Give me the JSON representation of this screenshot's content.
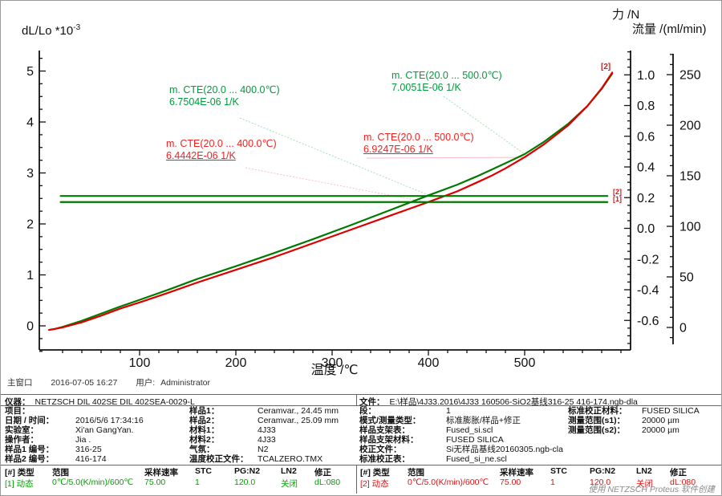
{
  "window": {
    "status": {
      "window_label": "主窗口",
      "datetime": "2016-07-05 16:27",
      "user_label": "用户:",
      "user": "Administrator"
    },
    "credit": "使用 NETZSCH Proteus 软件创建"
  },
  "chart_data": {
    "type": "line",
    "title": "",
    "axes": {
      "x": {
        "title": "温度 /℃",
        "range": [
          0,
          610
        ],
        "major_ticks": [
          100,
          200,
          300,
          400,
          500
        ],
        "minor_step": 20
      },
      "y_left": {
        "title_base": "dL/Lo *10",
        "title_exp": "-3",
        "range": [
          -0.55,
          5.4
        ],
        "major_ticks": [
          0,
          1,
          2,
          3,
          4,
          5
        ],
        "minor_step": 0.25
      },
      "y_force": {
        "title": "力 /N",
        "range": [
          -0.8,
          1.16
        ],
        "major_ticks": [
          1.0,
          0.8,
          0.6,
          0.4,
          0.2,
          0.0,
          -0.2,
          -0.4,
          -0.6
        ],
        "minor_step": 0.05
      },
      "y_flow": {
        "title": "流量 /(ml/min)",
        "range": [
          -17,
          270
        ],
        "major_ticks": [
          0,
          50,
          100,
          150,
          200,
          250
        ],
        "minor_step": 10
      }
    },
    "series": [
      {
        "name": "dL/Lo sample [1]",
        "color": "#007a00",
        "axis": "left",
        "x": [
          6,
          12,
          20,
          40,
          60,
          80,
          100,
          130,
          160,
          200,
          240,
          280,
          320,
          360,
          400,
          430,
          450,
          465,
          480,
          500,
          520,
          545,
          565,
          580,
          591
        ],
        "y": [
          -0.08,
          -0.06,
          -0.02,
          0.1,
          0.24,
          0.38,
          0.51,
          0.71,
          0.92,
          1.17,
          1.43,
          1.7,
          1.98,
          2.27,
          2.56,
          2.77,
          2.93,
          3.06,
          3.19,
          3.37,
          3.61,
          3.96,
          4.31,
          4.65,
          4.95
        ]
      },
      {
        "name": "dL/Lo sample [2]",
        "color": "#dd0000",
        "axis": "left",
        "x": [
          6,
          12,
          20,
          40,
          60,
          80,
          100,
          130,
          160,
          200,
          240,
          280,
          320,
          360,
          400,
          430,
          450,
          465,
          480,
          500,
          520,
          545,
          565,
          580,
          591
        ],
        "y": [
          -0.08,
          -0.06,
          -0.03,
          0.07,
          0.2,
          0.34,
          0.46,
          0.65,
          0.85,
          1.1,
          1.35,
          1.62,
          1.89,
          2.16,
          2.43,
          2.64,
          2.81,
          2.94,
          3.09,
          3.31,
          3.56,
          3.93,
          4.31,
          4.66,
          4.97
        ]
      },
      {
        "name": "gas flow [2]",
        "color": "#007a00",
        "axis": "flow",
        "x": [
          18,
          586
        ],
        "y": [
          130,
          130
        ]
      },
      {
        "name": "gas flow [1]",
        "color": "#007a00",
        "axis": "flow",
        "x": [
          18,
          586
        ],
        "y": [
          124,
          124
        ]
      }
    ],
    "markers": {
      "curve_end": "[2]",
      "flow_top": "[2]",
      "flow_bottom": "[1]"
    },
    "annotations": [
      {
        "line1": "m. CTE(20.0 ... 400.0℃)",
        "line2": "6.7504E-06 1/K",
        "color": "#009b3c",
        "underline": false
      },
      {
        "line1": "m. CTE(20.0 ... 400.0℃)",
        "line2": "6.4442E-06 1/K",
        "color": "#ee2222",
        "underline": true
      },
      {
        "line1": "m. CTE(20.0 ... 500.0℃)",
        "line2": "7.0051E-06 1/K",
        "color": "#009b3c",
        "underline": false
      },
      {
        "line1": "m. CTE(20.0 ... 500.0℃)",
        "line2": "6.9247E-06 1/K",
        "color": "#ee2222",
        "underline": true
      }
    ]
  },
  "info": {
    "instrument_label": "仪器：",
    "instrument": "NETZSCH DIL 402SE DIL 402SEA-0029-L",
    "file_label": "文件：",
    "file": "E:\\样品\\4J33.2016\\4J33 160506-SiO2基线316-25 416-174.ngb-dla",
    "groups": [
      {
        "rows": [
          [
            "项目：",
            ""
          ],
          [
            "日期 / 时间：",
            "2016/5/6 17:34:16"
          ],
          [
            "实验室：",
            "Xi'an GangYan."
          ],
          [
            "操作者：",
            "Jia ."
          ],
          [
            "样品1 编号：",
            "316-25"
          ],
          [
            "样品2 编号：",
            "416-174"
          ]
        ]
      },
      {
        "rows": [
          [
            "样品1：",
            "Ceramvar., 24.45 mm"
          ],
          [
            "样品2：",
            "Ceramvar., 25.09 mm"
          ],
          [
            "材料1：",
            "4J33"
          ],
          [
            "材料2：",
            "4J33"
          ],
          [
            "气氛：",
            "N2"
          ],
          [
            "温度校正文件：",
            "TCALZERO.TMX"
          ]
        ]
      },
      {
        "rows": [
          [
            "段：",
            "1"
          ],
          [
            "模式/测量类型：",
            "标准膨胀/样品+修正"
          ],
          [
            "样品支架表：",
            "Fused_si.scl"
          ],
          [
            "样品支架材料：",
            "FUSED SILICA"
          ],
          [
            "校正文件：",
            "Si无样品基线20160305.ngb-cla"
          ],
          [
            "标准校正表：",
            "Fused_si_ne.scl"
          ]
        ]
      },
      {
        "rows": [
          [
            "标准校正材料：",
            "FUSED SILICA"
          ],
          [
            "测量范围(s1)：",
            "20000 µm"
          ],
          [
            "测量范围(s2)：",
            "20000 µm"
          ]
        ]
      }
    ]
  },
  "segments": {
    "headers": [
      "[#] 类型",
      "范围",
      "采样速率",
      "STC",
      "PG:N2",
      "LN2",
      "修正"
    ],
    "tables": [
      {
        "row": [
          "[1] 动态",
          "0℃/5.0(K/min)/600℃",
          "75.00",
          "1",
          "120.0",
          "关闭",
          "dL:080"
        ],
        "color": "#00a000"
      },
      {
        "row": [
          "[2] 动态",
          "0℃/5.0(K/min)/600℃",
          "75.00",
          "1",
          "120.0",
          "关闭",
          "dL:080"
        ],
        "color": "#dd1111"
      }
    ]
  }
}
